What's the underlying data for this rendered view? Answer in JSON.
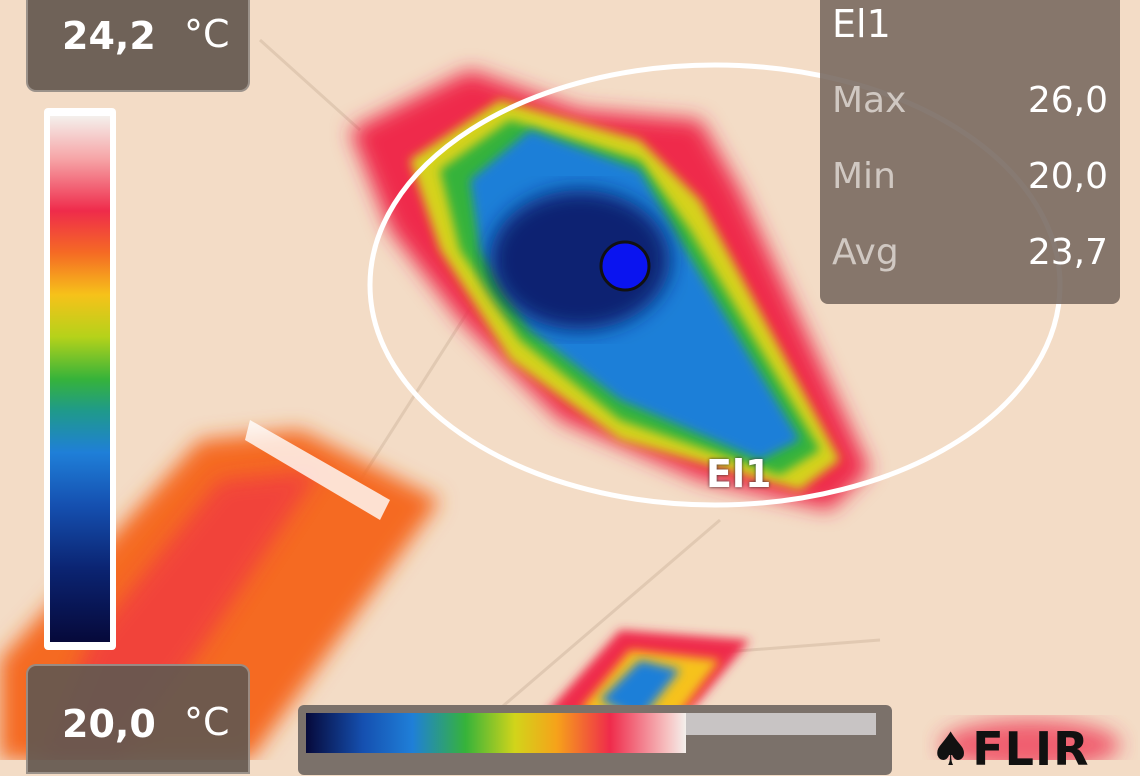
{
  "scale": {
    "max_value": "24,2",
    "min_value": "20,0",
    "unit": "°C"
  },
  "measurement": {
    "name": "El1",
    "rows": [
      {
        "label": "Max",
        "value": "26,0"
      },
      {
        "label": "Min",
        "value": "20,0"
      },
      {
        "label": "Avg",
        "value": "23,7"
      }
    ]
  },
  "ellipse_label": "El1",
  "logo": "FLIR",
  "palette": "rainbow",
  "colors": {
    "spot": "#0a14f0",
    "overlay": "#645850"
  }
}
